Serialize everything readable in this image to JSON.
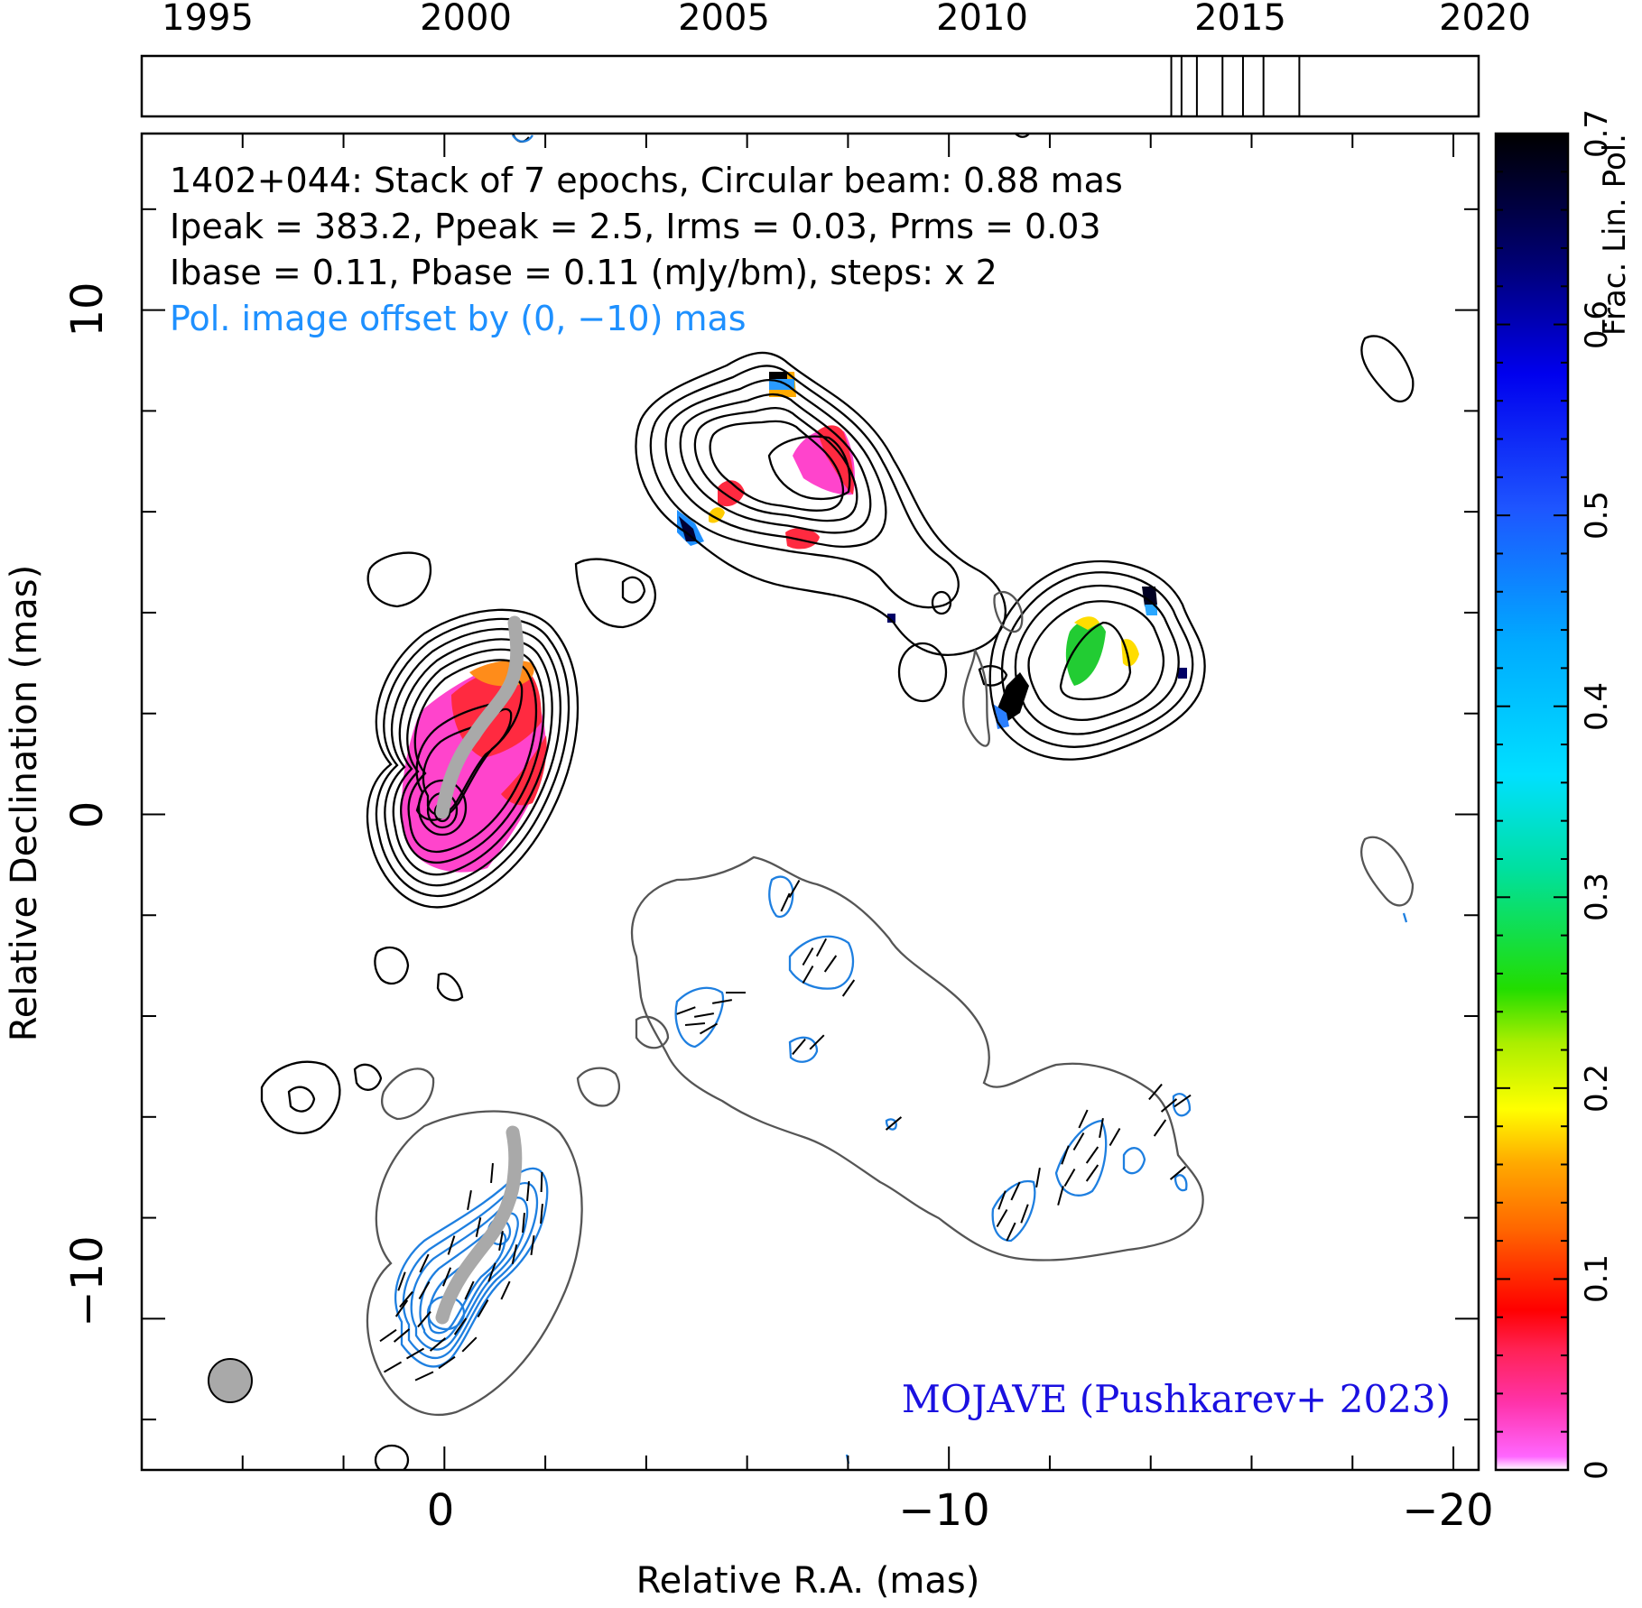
{
  "timeline": {
    "year_labels": [
      "1995",
      "2000",
      "2005",
      "2010",
      "2015",
      "2020"
    ],
    "year_range": [
      1993.9,
      2020.0
    ],
    "epochs": [
      2014.0,
      2014.2,
      2014.5,
      2015.0,
      2015.4,
      2015.8,
      2016.5
    ]
  },
  "info": {
    "line1": "1402+044: Stack of 7 epochs, Circular beam: 0.88 mas",
    "line2": "Ipeak = 383.2, Ppeak = 2.5, Irms = 0.03, Prms = 0.03",
    "line3": "Ibase = 0.11, Pbase = 0.11 (mJy/bm), steps: x 2",
    "line4": "Pol. image offset by (0, −10) mas"
  },
  "credit": "MOJAVE (Pushkarev+ 2023)",
  "colors": {
    "pol_contour": "#1e7fe0",
    "stokes_i_contour": "#000000",
    "negative_contour": "#555555",
    "ridge": "#a9a9a9",
    "beam": "#a9a9a9",
    "info_highlight": "#1e90ff",
    "credit": "#1a10e0"
  },
  "chart_data": {
    "type": "heatmap",
    "xlabel": "Relative R.A. (mas)",
    "ylabel": "Relative Declination (mas)",
    "xlim": [
      6,
      -20.5
    ],
    "ylim": [
      -13,
      13.5
    ],
    "x_ticks": [
      0,
      -10,
      -20
    ],
    "x_tick_labels": [
      "0",
      "−10",
      "−20"
    ],
    "y_ticks": [
      -10,
      0,
      10
    ],
    "y_tick_labels": [
      "−10",
      "0",
      "10"
    ],
    "colorbar": {
      "label": "Frac. Lin. Pol.",
      "range": [
        0,
        0.7
      ],
      "ticks": [
        0,
        0.1,
        0.2,
        0.3,
        0.4,
        0.5,
        0.6,
        0.7
      ],
      "tick_labels": [
        "0",
        "0.1",
        "0.2",
        "0.3",
        "0.4",
        "0.5",
        "0.6",
        "0.7"
      ]
    },
    "beam_diameter_mas": 0.88,
    "pol_offset_mas": [
      0,
      -10
    ]
  }
}
